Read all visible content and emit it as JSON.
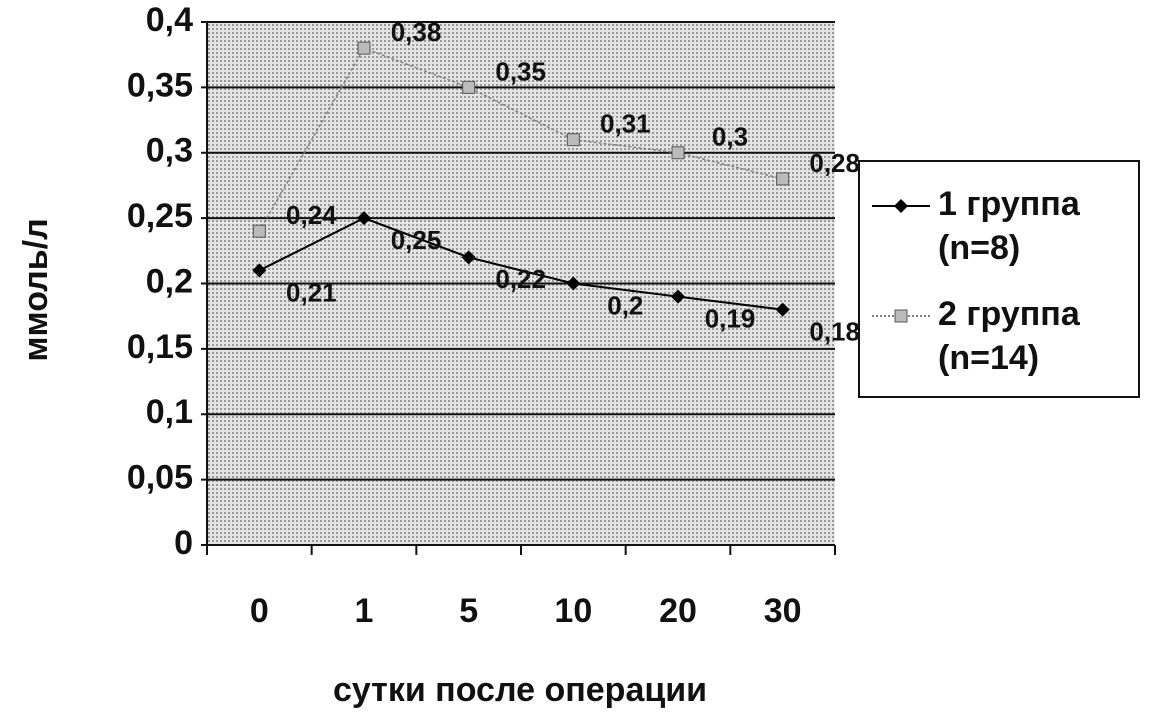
{
  "chart_data": {
    "type": "line",
    "x_label": "сутки после операции",
    "y_label": "ммоль/л",
    "categories": [
      "0",
      "1",
      "5",
      "10",
      "20",
      "30"
    ],
    "series": [
      {
        "name": "1 группа (n=8)",
        "color": "#000000",
        "values": [
          0.21,
          0.25,
          0.22,
          0.2,
          0.19,
          0.18
        ],
        "value_labels": [
          "0,21",
          "0,25",
          "0,22",
          "0,2",
          "0,19",
          "0,18"
        ]
      },
      {
        "name": "2 группа (n=14)",
        "color": "#808080",
        "values": [
          0.24,
          0.38,
          0.35,
          0.31,
          0.3,
          0.28
        ],
        "value_labels": [
          "0,24",
          "0,38",
          "0,35",
          "0,31",
          "0,3",
          "0,28"
        ]
      }
    ],
    "ylim": [
      0,
      0.4
    ],
    "yticks": [
      0,
      {
        "value": 0.05,
        "label": "0,05"
      },
      {
        "value": 0.1,
        "label": "0,1"
      },
      {
        "value": 0.15,
        "label": "0,15"
      },
      {
        "value": 0.2,
        "label": "0,2"
      },
      {
        "value": 0.25,
        "label": "0,25"
      },
      {
        "value": 0.3,
        "label": "0,3"
      },
      {
        "value": 0.35,
        "label": "0,35"
      },
      {
        "value": 0.4,
        "label": "0,4"
      }
    ],
    "grid": true
  }
}
